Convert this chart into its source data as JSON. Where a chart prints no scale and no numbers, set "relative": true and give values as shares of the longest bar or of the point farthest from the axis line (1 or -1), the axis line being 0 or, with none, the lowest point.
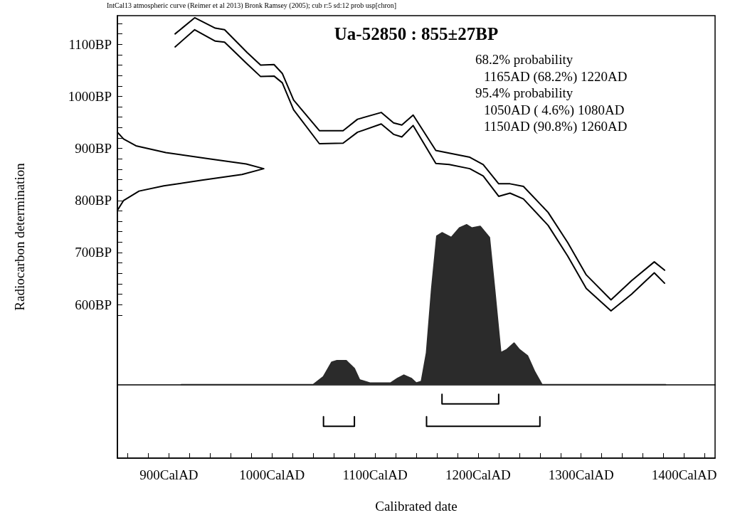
{
  "chart_data": [
    {
      "type": "line",
      "title": "Ua-52850 : 855±27BP",
      "xlabel": "Calibrated date",
      "ylabel": "Radiocarbon determination",
      "annotations": [
        "IntCal13 atmospheric curve (Reimer et al 2013) Bronk Ramsey (2005); cub r:5 sd:12 prob usp[chron]",
        "68.2% probability",
        "1165AD (68.2%) 1220AD",
        "95.4% probability",
        "1050AD ( 4.6%) 1080AD",
        "1150AD (90.8%) 1260AD"
      ],
      "xlim": [
        850,
        1430
      ],
      "ylim": [
        305,
        1155
      ],
      "xticks": [
        {
          "value": 860,
          "label": null
        },
        {
          "value": 880,
          "label": null
        },
        {
          "value": 900,
          "label": "900CalAD"
        },
        {
          "value": 920,
          "label": null
        },
        {
          "value": 940,
          "label": null
        },
        {
          "value": 960,
          "label": null
        },
        {
          "value": 980,
          "label": null
        },
        {
          "value": 1000,
          "label": "1000CalAD"
        },
        {
          "value": 1020,
          "label": null
        },
        {
          "value": 1040,
          "label": null
        },
        {
          "value": 1060,
          "label": null
        },
        {
          "value": 1080,
          "label": null
        },
        {
          "value": 1100,
          "label": "1100CalAD"
        },
        {
          "value": 1120,
          "label": null
        },
        {
          "value": 1140,
          "label": null
        },
        {
          "value": 1160,
          "label": null
        },
        {
          "value": 1180,
          "label": null
        },
        {
          "value": 1200,
          "label": "1200CalAD"
        },
        {
          "value": 1220,
          "label": null
        },
        {
          "value": 1240,
          "label": null
        },
        {
          "value": 1260,
          "label": null
        },
        {
          "value": 1280,
          "label": null
        },
        {
          "value": 1300,
          "label": "1300CalAD"
        },
        {
          "value": 1320,
          "label": null
        },
        {
          "value": 1340,
          "label": null
        },
        {
          "value": 1360,
          "label": null
        },
        {
          "value": 1380,
          "label": null
        },
        {
          "value": 1400,
          "label": "1400CalAD"
        },
        {
          "value": 1420,
          "label": null
        }
      ],
      "yticks": [
        {
          "value": 580,
          "label": null
        },
        {
          "value": 600,
          "label": "600BP"
        },
        {
          "value": 620,
          "label": null
        },
        {
          "value": 640,
          "label": null
        },
        {
          "value": 660,
          "label": null
        },
        {
          "value": 680,
          "label": null
        },
        {
          "value": 700,
          "label": "700BP"
        },
        {
          "value": 720,
          "label": null
        },
        {
          "value": 740,
          "label": null
        },
        {
          "value": 760,
          "label": null
        },
        {
          "value": 780,
          "label": null
        },
        {
          "value": 800,
          "label": "800BP"
        },
        {
          "value": 820,
          "label": null
        },
        {
          "value": 840,
          "label": null
        },
        {
          "value": 860,
          "label": null
        },
        {
          "value": 880,
          "label": null
        },
        {
          "value": 900,
          "label": "900BP"
        },
        {
          "value": 920,
          "label": null
        },
        {
          "value": 940,
          "label": null
        },
        {
          "value": 960,
          "label": null
        },
        {
          "value": 980,
          "label": null
        },
        {
          "value": 1000,
          "label": "1000BP"
        },
        {
          "value": 1020,
          "label": null
        },
        {
          "value": 1040,
          "label": null
        },
        {
          "value": 1060,
          "label": null
        },
        {
          "value": 1080,
          "label": null
        },
        {
          "value": 1100,
          "label": "1100BP"
        },
        {
          "value": 1120,
          "label": null
        },
        {
          "value": 1140,
          "label": null
        }
      ],
      "series": [
        {
          "color": "#000000",
          "x": [
            906,
            925,
            945,
            954,
            976,
            989,
            1002,
            1010,
            1021,
            1046,
            1069,
            1083,
            1106,
            1118,
            1126,
            1137,
            1159,
            1172,
            1192,
            1205,
            1220,
            1231,
            1244,
            1268,
            1287,
            1305,
            1329,
            1349,
            1371,
            1381
          ],
          "values": [
            1120,
            1151,
            1131,
            1128,
            1084,
            1060,
            1061,
            1044,
            993,
            934,
            934,
            956,
            969,
            949,
            945,
            964,
            896,
            891,
            883,
            869,
            832,
            832,
            827,
            777,
            719,
            657,
            609,
            646,
            682,
            666
          ]
        },
        {
          "color": "#000000",
          "x": [
            850,
            856,
            868,
            897,
            939,
            975,
            992,
            971,
            932,
            895,
            871,
            856,
            850
          ],
          "values": [
            931,
            918,
            905,
            892,
            880,
            870,
            861,
            850,
            839,
            828,
            818,
            800,
            781
          ]
        },
        {
          "color": "#000000",
          "x": [
            906,
            925,
            945,
            954,
            976,
            989,
            1002,
            1010,
            1021,
            1046,
            1069,
            1083,
            1106,
            1118,
            1126,
            1137,
            1159,
            1172,
            1192,
            1205,
            1220,
            1231,
            1244,
            1268,
            1287,
            1305,
            1329,
            1349,
            1371,
            1381
          ],
          "values": [
            1095,
            1128,
            1106,
            1104,
            1062,
            1038,
            1039,
            1026,
            974,
            909,
            910,
            931,
            947,
            927,
            922,
            944,
            871,
            869,
            861,
            847,
            808,
            814,
            803,
            752,
            693,
            631,
            588,
            620,
            661,
            641
          ]
        }
      ]
    },
    {
      "type": "area",
      "relative": true,
      "xlim": [
        850,
        1430
      ],
      "series": [
        {
          "color": "#2b2b2b",
          "x": [
            912,
            1040,
            1050,
            1058,
            1063,
            1072,
            1080,
            1085,
            1095,
            1115,
            1122,
            1128,
            1135,
            1140,
            1145,
            1150,
            1155,
            1160,
            1165,
            1174,
            1182,
            1189,
            1194,
            1202,
            1211,
            1216,
            1222,
            1228,
            1235,
            1240,
            1248,
            1255,
            1262,
            1382
          ],
          "values": [
            0,
            0,
            0.05,
            0.14,
            0.15,
            0.15,
            0.1,
            0.03,
            0.01,
            0.01,
            0.04,
            0.06,
            0.04,
            0.01,
            0.02,
            0.2,
            0.6,
            0.93,
            0.95,
            0.92,
            0.98,
            1,
            0.98,
            0.99,
            0.92,
            0.6,
            0.2,
            0.22,
            0.26,
            0.22,
            0.18,
            0.08,
            0,
            0
          ]
        },
        {
          "type": "line",
          "color": "#000000",
          "x": [
            1165,
            1165,
            1220,
            1220
          ],
          "values": [
            -0.06,
            -0.12,
            -0.12,
            -0.06
          ]
        },
        {
          "type": "line",
          "color": "#000000",
          "x": [
            1050,
            1050,
            1080,
            1080
          ],
          "values": [
            -0.2,
            -0.26,
            -0.26,
            -0.2
          ]
        },
        {
          "type": "line",
          "color": "#000000",
          "x": [
            1150,
            1150,
            1260,
            1260
          ],
          "values": [
            -0.2,
            -0.26,
            -0.26,
            -0.2
          ]
        }
      ]
    }
  ]
}
